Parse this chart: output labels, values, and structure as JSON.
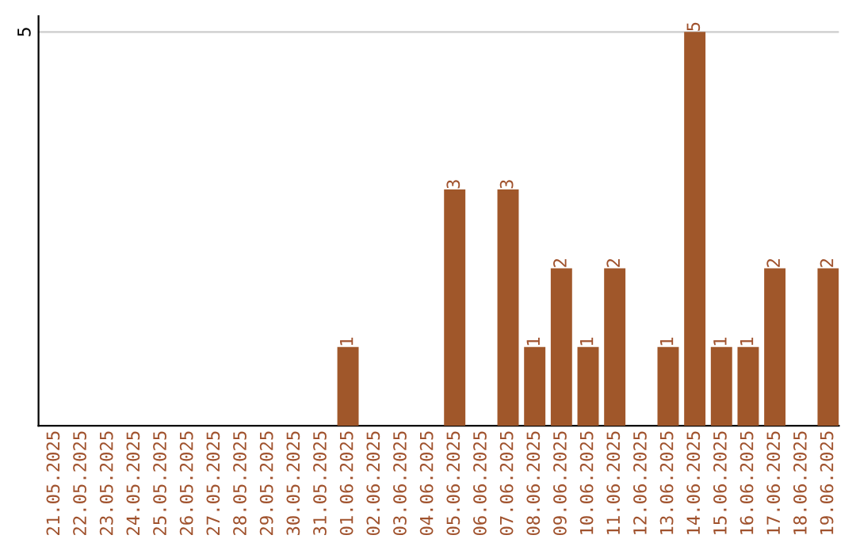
{
  "chart_data": {
    "type": "bar",
    "categories": [
      "21.05.2025",
      "22.05.2025",
      "23.05.2025",
      "24.05.2025",
      "25.05.2025",
      "26.05.2025",
      "27.05.2025",
      "28.05.2025",
      "29.05.2025",
      "30.05.2025",
      "31.05.2025",
      "01.06.2025",
      "02.06.2025",
      "03.06.2025",
      "04.06.2025",
      "05.06.2025",
      "06.06.2025",
      "07.06.2025",
      "08.06.2025",
      "09.06.2025",
      "10.06.2025",
      "11.06.2025",
      "12.06.2025",
      "13.06.2025",
      "14.06.2025",
      "15.06.2025",
      "16.06.2025",
      "17.06.2025",
      "18.06.2025",
      "19.06.2025"
    ],
    "values": [
      0,
      0,
      0,
      0,
      0,
      0,
      0,
      0,
      0,
      0,
      0,
      1,
      0,
      0,
      0,
      3,
      0,
      3,
      1,
      2,
      1,
      2,
      0,
      1,
      5,
      1,
      1,
      2,
      0,
      2
    ],
    "value_labels": [
      null,
      null,
      null,
      null,
      null,
      null,
      null,
      null,
      null,
      null,
      null,
      "1",
      null,
      null,
      null,
      "3",
      null,
      "3",
      "1",
      "2",
      "1",
      "2",
      null,
      "1",
      "5",
      "1",
      "1",
      "2",
      null,
      "2"
    ],
    "color": "#a0572a",
    "ylim": [
      0,
      5.2
    ],
    "yticks": [
      5
    ],
    "grid": "y",
    "legend": false
  }
}
